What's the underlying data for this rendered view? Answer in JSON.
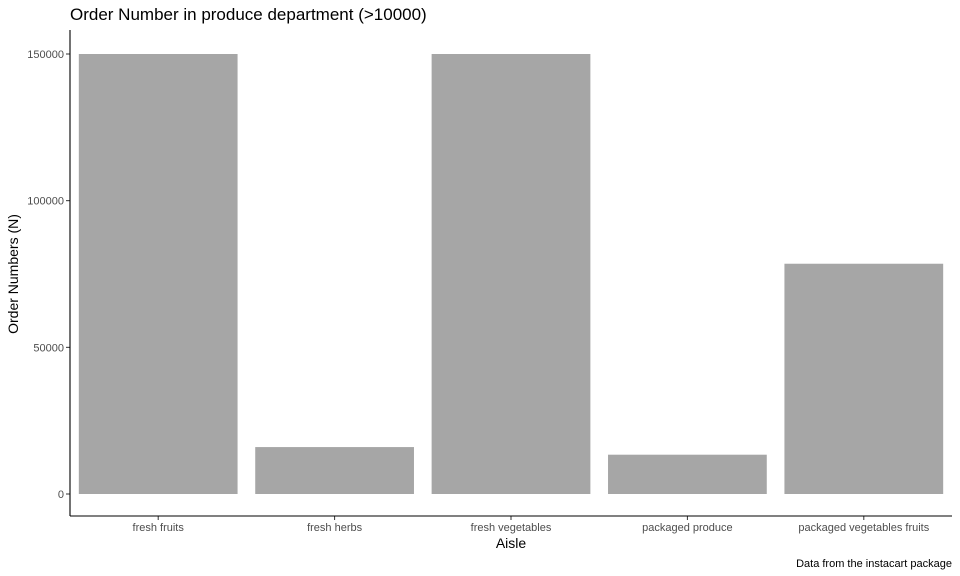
{
  "chart_data": {
    "type": "bar",
    "title": "Order Number in produce department (>10000)",
    "xlabel": "Aisle",
    "ylabel": "Order Numbers (N)",
    "caption": "Data from the instacart package",
    "categories": [
      "fresh fruits",
      "fresh herbs",
      "fresh vegetables",
      "packaged produce",
      "packaged vegetables fruits"
    ],
    "values": [
      150000,
      16000,
      150000,
      13400,
      78500
    ],
    "ylim": [
      0,
      150000
    ],
    "yticks": [
      0,
      50000,
      100000,
      150000
    ],
    "ytick_labels": [
      "0",
      "50000",
      "100000",
      "150000"
    ],
    "grid": false,
    "legend": "none",
    "colors": {
      "bar": "#a6a6a6",
      "axis": "#000000",
      "tick_text": "#4d4d4d"
    }
  }
}
